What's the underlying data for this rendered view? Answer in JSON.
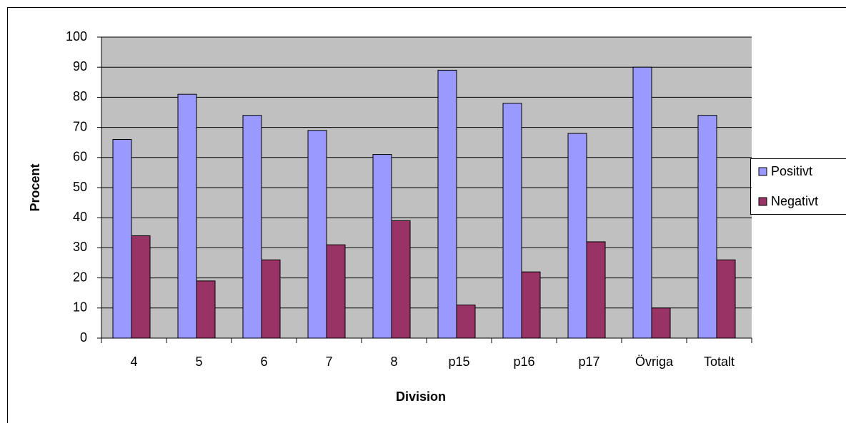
{
  "chart_data": {
    "type": "bar",
    "x_label": "Division",
    "y_label": "Procent",
    "categories": [
      "4",
      "5",
      "6",
      "7",
      "8",
      "p15",
      "p16",
      "p17",
      "Övriga",
      "Totalt"
    ],
    "series": [
      {
        "name": "Positivt",
        "color": "#9999ff",
        "values": [
          66,
          81,
          74,
          69,
          61,
          89,
          78,
          68,
          90,
          74
        ]
      },
      {
        "name": "Negativt",
        "color": "#993366",
        "values": [
          34,
          19,
          26,
          31,
          39,
          11,
          22,
          32,
          10,
          26
        ]
      }
    ],
    "ylim": [
      0,
      100
    ],
    "yticks": [
      0,
      10,
      20,
      30,
      40,
      50,
      60,
      70,
      80,
      90,
      100
    ],
    "grid": true,
    "legend": "right"
  }
}
